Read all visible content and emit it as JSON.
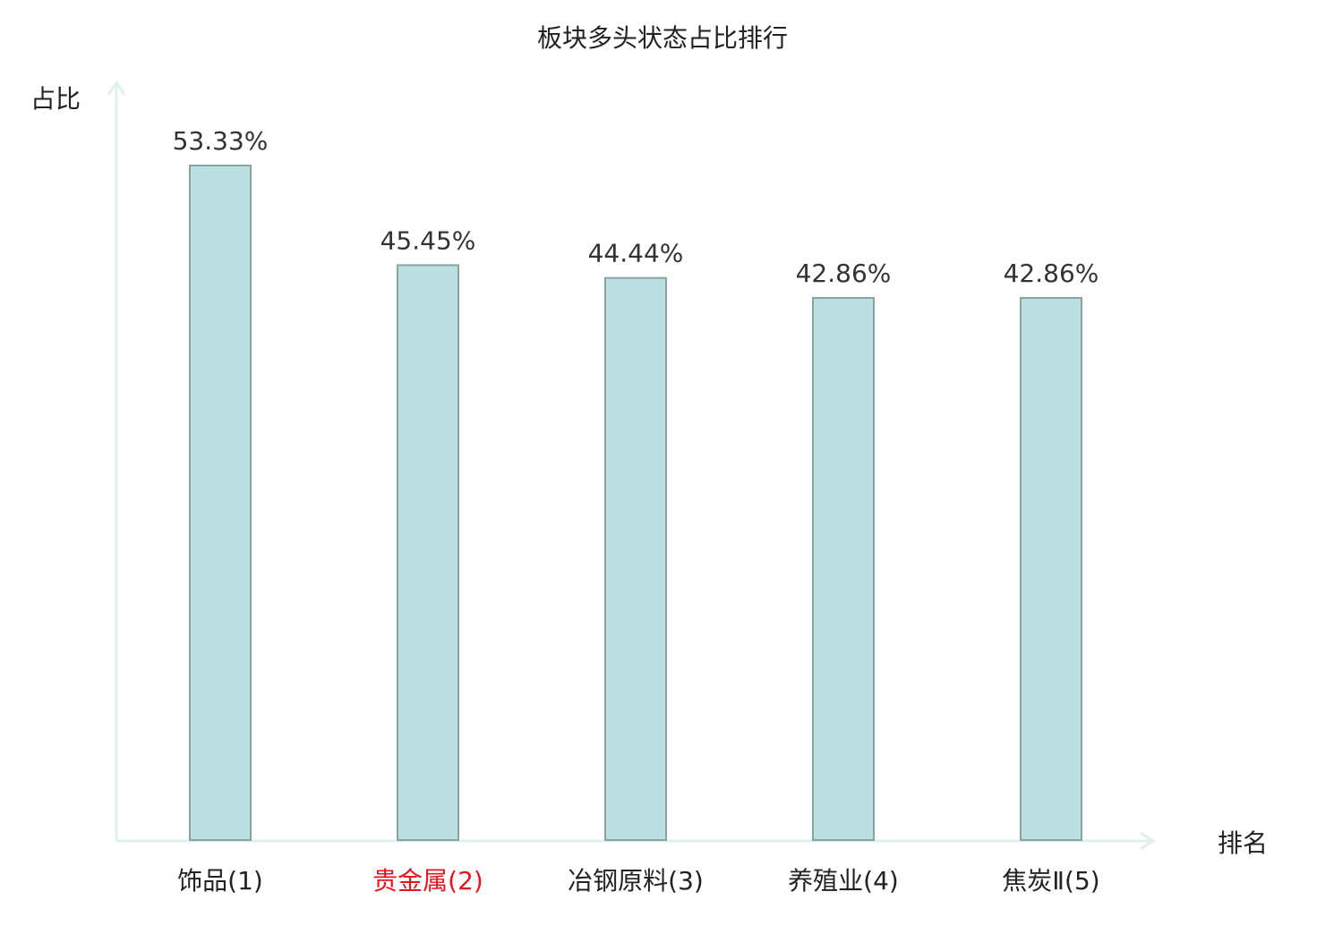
{
  "chart_data": {
    "type": "bar",
    "title": "板块多头状态占比排行",
    "xlabel": "排名",
    "ylabel": "占比",
    "categories": [
      "饰品(1)",
      "贵金属(2)",
      "冶钢原料(3)",
      "养殖业(4)",
      "焦炭Ⅱ(5)"
    ],
    "values": [
      53.33,
      45.45,
      44.44,
      42.86,
      42.86
    ],
    "value_labels": [
      "53.33%",
      "45.45%",
      "44.44%",
      "42.86%",
      "42.86%"
    ],
    "highlight_index": 1,
    "ylim": [
      0,
      53.33
    ],
    "grid": false,
    "legend": "none",
    "colors": {
      "bar_fill": "#bce0e1",
      "bar_stroke": "#88a3a5",
      "axis": "#dff1ef",
      "text": "#222222",
      "value_text": "#333333",
      "highlight": "#e8141b"
    }
  }
}
